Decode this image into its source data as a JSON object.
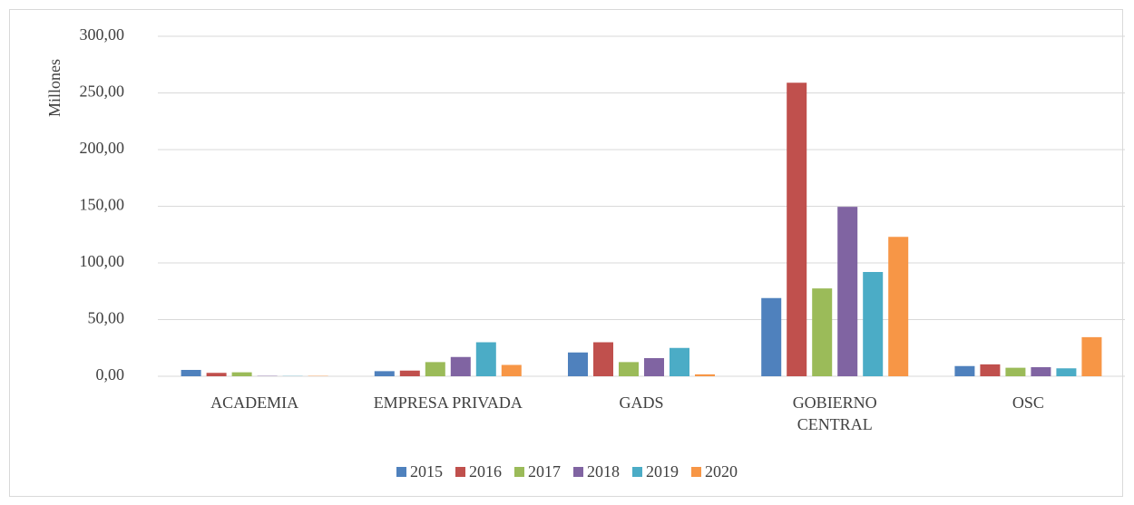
{
  "chart_data": {
    "type": "bar",
    "y_label": "Millones",
    "categories": [
      "ACADEMIA",
      "EMPRESA PRIVADA",
      "GADS",
      "GOBIERNO CENTRAL",
      "OSC"
    ],
    "series": [
      {
        "name": "2015",
        "color": "#4f81bd",
        "values": [
          5.6,
          4.5,
          21,
          69,
          9
        ]
      },
      {
        "name": "2016",
        "color": "#c0504d",
        "values": [
          3,
          5,
          30,
          259,
          10.5
        ]
      },
      {
        "name": "2017",
        "color": "#9bbb59",
        "values": [
          3.5,
          12.5,
          12.5,
          77.5,
          7.5
        ]
      },
      {
        "name": "2018",
        "color": "#8064a2",
        "values": [
          0.3,
          17,
          16,
          149.5,
          8
        ]
      },
      {
        "name": "2019",
        "color": "#4bacc6",
        "values": [
          0.2,
          30,
          25,
          92,
          7
        ]
      },
      {
        "name": "2020",
        "color": "#f79646",
        "values": [
          0.3,
          10,
          1.7,
          123,
          34.5
        ]
      }
    ],
    "ylim": [
      0,
      300
    ],
    "yticks": [
      {
        "value": 0,
        "label": "0,00"
      },
      {
        "value": 50,
        "label": "50,00"
      },
      {
        "value": 100,
        "label": "100,00"
      },
      {
        "value": 150,
        "label": "150,00"
      },
      {
        "value": 200,
        "label": "200,00"
      },
      {
        "value": 250,
        "label": "250,00"
      },
      {
        "value": 300,
        "label": "300,00"
      }
    ],
    "grid": true,
    "legend": "bottom"
  }
}
